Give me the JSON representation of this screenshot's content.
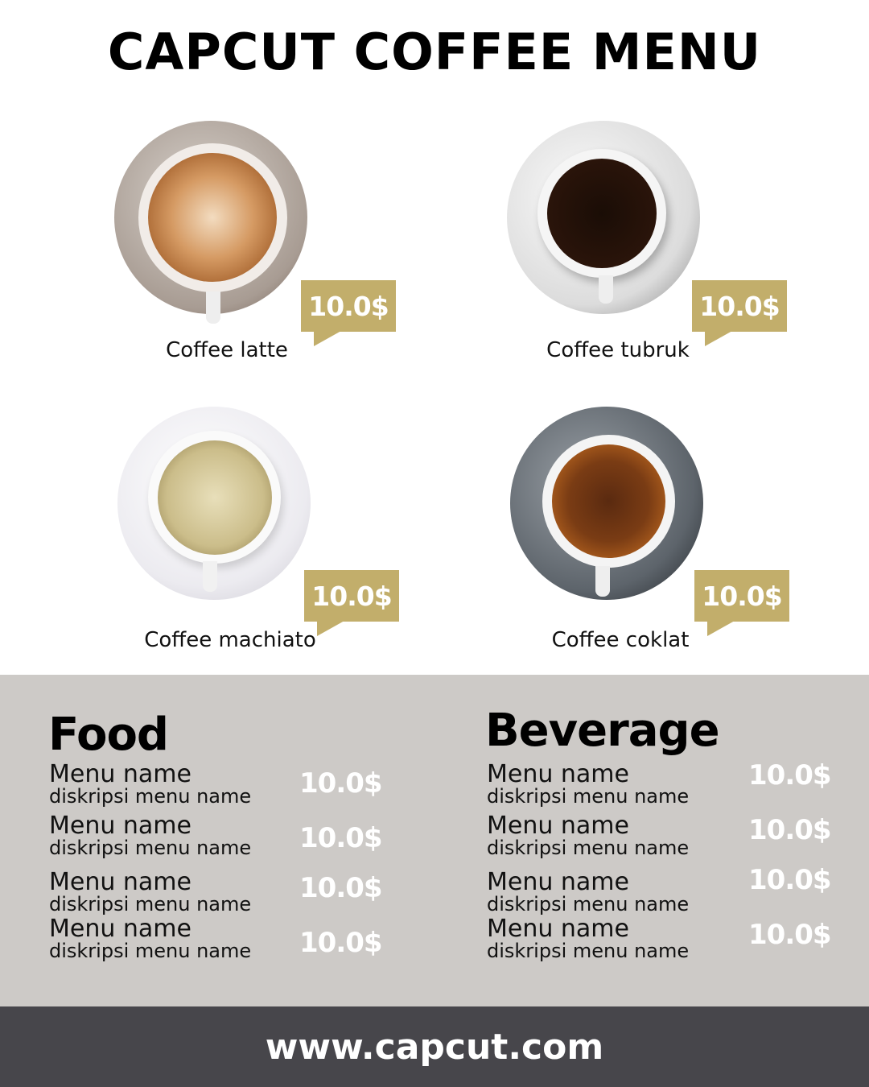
{
  "title": "CAPCUT COFFEE MENU",
  "colors": {
    "accent": "#c2ae6b",
    "panel": "#cdcac7",
    "footer": "#47464b"
  },
  "coffees": [
    {
      "name": "Coffee latte",
      "price": "10.0$"
    },
    {
      "name": "Coffee tubruk",
      "price": "10.0$"
    },
    {
      "name": "Coffee machiato",
      "price": "10.0$"
    },
    {
      "name": "Coffee coklat",
      "price": "10.0$"
    }
  ],
  "food": {
    "title": "Food",
    "items": [
      {
        "name": "Menu name",
        "desc": "diskripsi menu name",
        "price": "10.0$"
      },
      {
        "name": "Menu name",
        "desc": "diskripsi menu name",
        "price": "10.0$"
      },
      {
        "name": "Menu name",
        "desc": "diskripsi menu name",
        "price": "10.0$"
      },
      {
        "name": "Menu name",
        "desc": "diskripsi menu name",
        "price": "10.0$"
      }
    ]
  },
  "beverage": {
    "title": "Beverage",
    "items": [
      {
        "name": "Menu name",
        "desc": "diskripsi menu name",
        "price": "10.0$"
      },
      {
        "name": "Menu name",
        "desc": "diskripsi menu name",
        "price": "10.0$"
      },
      {
        "name": "Menu name",
        "desc": "diskripsi menu name",
        "price": "10.0$"
      },
      {
        "name": "Menu name",
        "desc": "diskripsi menu name",
        "price": "10.0$"
      }
    ]
  },
  "footer": "www.capcut.com"
}
